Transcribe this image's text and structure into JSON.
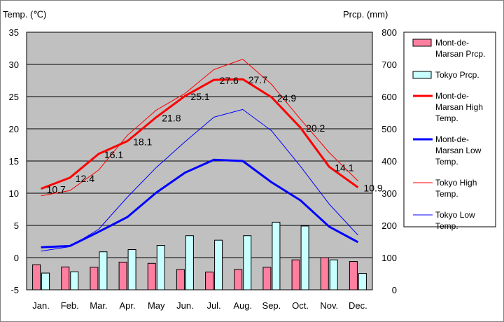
{
  "chart_data": {
    "type": "bar+line",
    "left_axis_title": "Temp. (℃)",
    "right_axis_title": "Prcp. (mm)",
    "categories": [
      "Jan.",
      "Feb.",
      "Mar.",
      "Apr.",
      "May",
      "Jun.",
      "Jul.",
      "Aug.",
      "Sep.",
      "Oct.",
      "Nov.",
      "Dec."
    ],
    "y_left": {
      "min": -5,
      "max": 35,
      "ticks": [
        -5,
        0,
        5,
        10,
        15,
        20,
        25,
        30,
        35
      ]
    },
    "y_right": {
      "min": 0,
      "max": 800,
      "ticks": [
        0,
        100,
        200,
        300,
        400,
        500,
        600,
        700,
        800
      ]
    },
    "grid": true,
    "legend_position": "right",
    "bars": [
      {
        "name": "Mont-de-Marsan Prcp.",
        "color": "#ff7fa0",
        "values": [
          78,
          71,
          70,
          86,
          82,
          63,
          55,
          63,
          70,
          93,
          100,
          88
        ]
      },
      {
        "name": "Tokyo Prcp.",
        "color": "#c8ffff",
        "values": [
          52,
          56,
          118,
          125,
          138,
          168,
          154,
          168,
          210,
          198,
          93,
          51
        ]
      }
    ],
    "lines": [
      {
        "name": "Mont-de-Marsan High Temp.",
        "color": "#ff0000",
        "width": 3,
        "values": [
          10.7,
          12.4,
          16.1,
          18.1,
          21.8,
          25.1,
          27.6,
          27.7,
          24.9,
          20.2,
          14.1,
          10.9
        ],
        "labels": [
          "10.7",
          "12.4",
          "16.1",
          "18.1",
          "21.8",
          "25.1",
          "27.6",
          "27.7",
          "24.9",
          "20.2",
          "14.1",
          "10.9"
        ]
      },
      {
        "name": "Mont-de-Marsan Low Temp.",
        "color": "#0000ff",
        "width": 3,
        "values": [
          1.6,
          1.8,
          4.0,
          6.3,
          10.1,
          13.2,
          15.2,
          15.0,
          11.7,
          8.9,
          4.8,
          2.4
        ]
      },
      {
        "name": "Tokyo High Temp.",
        "color": "#ff0000",
        "width": 1,
        "values": [
          9.6,
          10.4,
          13.6,
          19.0,
          22.9,
          25.5,
          29.2,
          30.8,
          26.9,
          21.5,
          16.3,
          11.9
        ]
      },
      {
        "name": "Tokyo Low Temp.",
        "color": "#0000ff",
        "width": 1,
        "values": [
          1.0,
          1.7,
          4.4,
          9.4,
          14.0,
          18.0,
          21.8,
          23.0,
          19.7,
          14.2,
          8.3,
          3.5
        ]
      }
    ],
    "legend": [
      {
        "kind": "bar",
        "series": 0,
        "lines": [
          "Mont-de-",
          "Marsan Prcp."
        ]
      },
      {
        "kind": "bar",
        "series": 1,
        "lines": [
          "Tokyo Prcp."
        ]
      },
      {
        "kind": "line",
        "series": 0,
        "lines": [
          "Mont-de-",
          "Marsan High",
          "Temp."
        ]
      },
      {
        "kind": "line",
        "series": 1,
        "lines": [
          "Mont-de-",
          "Marsan Low",
          "Temp."
        ]
      },
      {
        "kind": "line",
        "series": 2,
        "lines": [
          "Tokyo High",
          "Temp."
        ]
      },
      {
        "kind": "line",
        "series": 3,
        "lines": [
          "Tokyo Low",
          "Temp."
        ]
      }
    ]
  }
}
